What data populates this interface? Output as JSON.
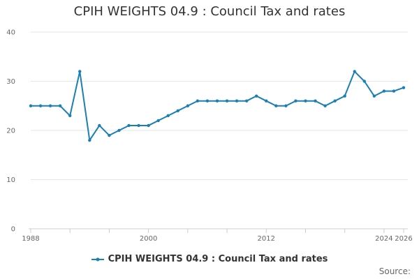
{
  "chart_data": {
    "type": "line",
    "title": "CPIH WEIGHTS 04.9 : Council Tax and rates",
    "xlabel": "",
    "ylabel": "",
    "ylim": [
      0,
      40
    ],
    "xlim": [
      1988,
      2026
    ],
    "yticks": [
      0,
      10,
      20,
      30,
      40
    ],
    "xtick_labels": [
      {
        "value": 1988,
        "label": "1988"
      },
      {
        "value": 2000,
        "label": "2000"
      },
      {
        "value": 2012,
        "label": "2012"
      },
      {
        "value": 2024,
        "label": "2024"
      },
      {
        "value": 2026,
        "label": "2026"
      }
    ],
    "grid": true,
    "legend_position": "bottom",
    "series": [
      {
        "name": "CPIH WEIGHTS 04.9 : Council Tax and rates",
        "color": "#1b7fb4",
        "x": [
          1988,
          1989,
          1990,
          1991,
          1992,
          1993,
          1994,
          1995,
          1996,
          1997,
          1998,
          1999,
          2000,
          2001,
          2002,
          2003,
          2004,
          2005,
          2006,
          2007,
          2008,
          2009,
          2010,
          2011,
          2012,
          2013,
          2014,
          2015,
          2016,
          2017,
          2018,
          2019,
          2020,
          2021,
          2022,
          2023,
          2024,
          2025,
          2026
        ],
        "values": [
          25,
          25,
          25,
          25,
          23,
          32,
          18,
          21,
          19,
          20,
          21,
          21,
          21,
          22,
          23,
          24,
          25,
          26,
          26,
          26,
          26,
          26,
          26,
          27,
          26,
          25,
          25,
          26,
          26,
          26,
          25,
          26,
          27,
          32,
          30,
          27,
          28,
          28,
          28.7
        ]
      }
    ]
  },
  "source_label": "Source:"
}
